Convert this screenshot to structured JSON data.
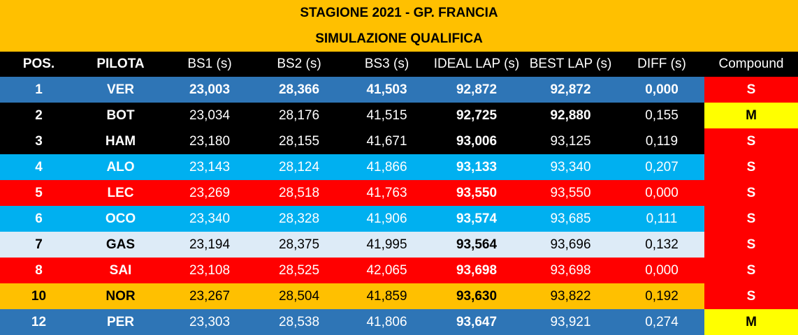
{
  "title": {
    "line1": "STAGIONE 2021 - GP. FRANCIA",
    "line2": "SIMULAZIONE QUALIFICA"
  },
  "table": {
    "header": [
      "POS.",
      "PILOTA",
      "BS1 (s)",
      "BS2 (s)",
      "BS3 (s)",
      "IDEAL LAP (s)",
      "BEST LAP (s)",
      "DIFF (s)",
      "Compound"
    ],
    "rows": [
      [
        "1",
        "VER",
        "23,003",
        "28,366",
        "41,503",
        "92,872",
        "92,872",
        "0,000",
        "S"
      ],
      [
        "2",
        "BOT",
        "23,034",
        "28,176",
        "41,515",
        "92,725",
        "92,880",
        "0,155",
        "M"
      ],
      [
        "3",
        "HAM",
        "23,180",
        "28,155",
        "41,671",
        "93,006",
        "93,125",
        "0,119",
        "S"
      ],
      [
        "4",
        "ALO",
        "23,143",
        "28,124",
        "41,866",
        "93,133",
        "93,340",
        "0,207",
        "S"
      ],
      [
        "5",
        "LEC",
        "23,269",
        "28,518",
        "41,763",
        "93,550",
        "93,550",
        "0,000",
        "S"
      ],
      [
        "6",
        "OCO",
        "23,340",
        "28,328",
        "41,906",
        "93,574",
        "93,685",
        "0,111",
        "S"
      ],
      [
        "7",
        "GAS",
        "23,194",
        "28,375",
        "41,995",
        "93,564",
        "93,696",
        "0,132",
        "S"
      ],
      [
        "8",
        "SAI",
        "23,108",
        "28,525",
        "42,065",
        "93,698",
        "93,698",
        "0,000",
        "S"
      ],
      [
        "10",
        "NOR",
        "23,267",
        "28,504",
        "41,859",
        "93,630",
        "93,822",
        "0,192",
        "S"
      ],
      [
        "12",
        "PER",
        "23,303",
        "28,538",
        "41,806",
        "93,647",
        "93,921",
        "0,274",
        "M"
      ]
    ]
  }
}
